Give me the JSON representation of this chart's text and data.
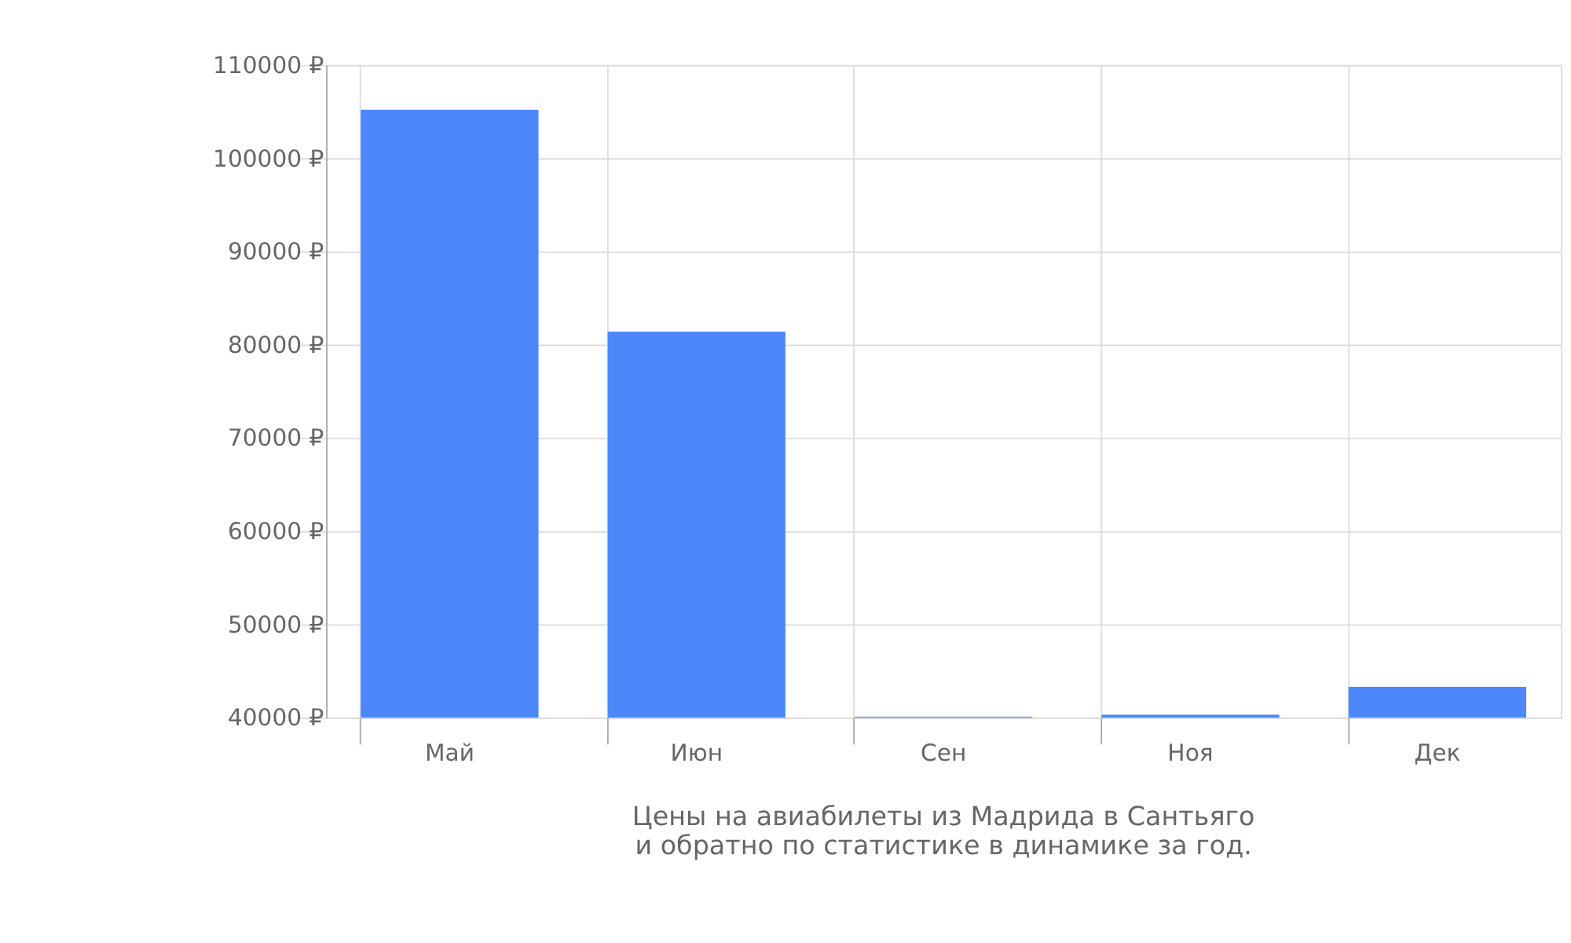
{
  "chart_data": {
    "type": "bar",
    "title": "Цены на авиабилеты из Мадрида в Сантьяго и обратно по статистике в динамике за год.",
    "categories": [
      "Май",
      "Июн",
      "Сен",
      "Ноя",
      "Дек"
    ],
    "values": [
      105200,
      81400,
      40100,
      40300,
      43300
    ],
    "color": "#4d88fb",
    "ylim": [
      40000,
      110000
    ],
    "yticks": [
      {
        "value": 40000,
        "label": "40000 ₽"
      },
      {
        "value": 50000,
        "label": "50000 ₽"
      },
      {
        "value": 60000,
        "label": "60000 ₽"
      },
      {
        "value": 70000,
        "label": "70000 ₽"
      },
      {
        "value": 80000,
        "label": "80000 ₽"
      },
      {
        "value": 90000,
        "label": "90000 ₽"
      },
      {
        "value": 100000,
        "label": "100000 ₽"
      },
      {
        "value": 110000,
        "label": "110000 ₽"
      }
    ],
    "grid": true
  }
}
